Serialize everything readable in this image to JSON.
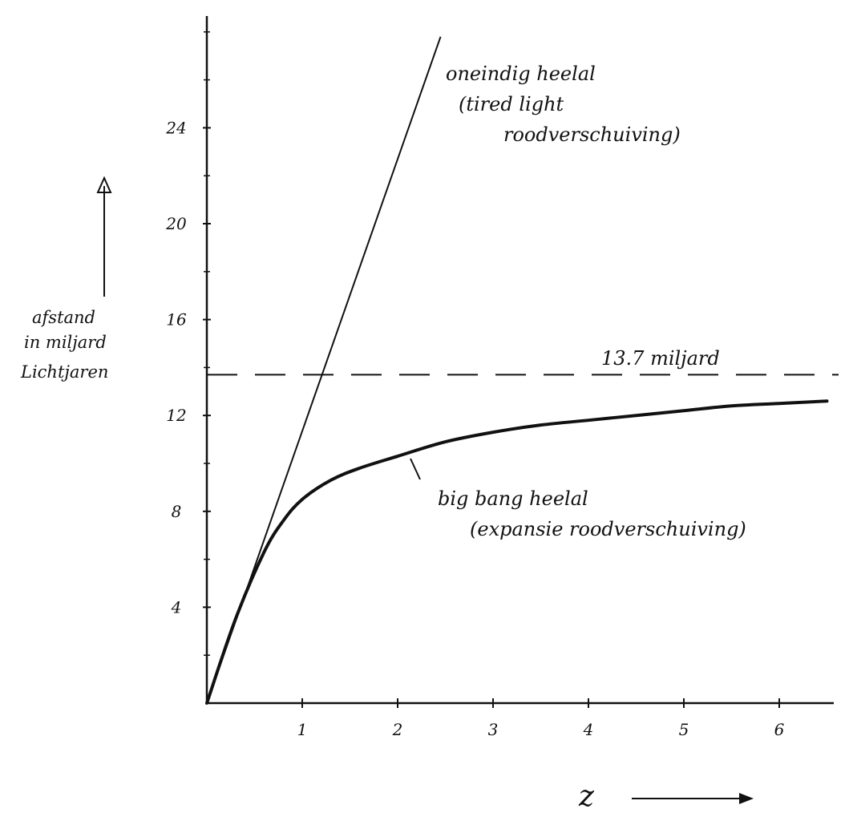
{
  "chart_data": {
    "type": "line",
    "ylabel": [
      "afstand",
      "in miljard",
      "Lichtjaren"
    ],
    "xlabel": "z",
    "xlim": [
      0,
      6.5
    ],
    "ylim": [
      0,
      28
    ],
    "x_ticks": [
      1,
      2,
      3,
      4,
      5,
      6
    ],
    "x_tick_labels": [
      "1",
      "2",
      "3",
      "4",
      "5",
      "6"
    ],
    "y_ticks": [
      4,
      8,
      12,
      16,
      20,
      24
    ],
    "y_tick_labels": [
      "4",
      "8",
      "12",
      "16",
      "20",
      "24"
    ],
    "y_minor_ticks": [
      2,
      6,
      10,
      14,
      18,
      22,
      26,
      28
    ],
    "grid": false,
    "series": [
      {
        "label_lines": [
          "oneindig heelal",
          "(tired light",
          "roodverschuiving)"
        ],
        "style": "solid-thin",
        "x": [
          0,
          2.45
        ],
        "y": [
          0,
          27.8
        ]
      },
      {
        "label_lines": [
          "big bang heelal",
          "(expansie roodverschuiving)"
        ],
        "style": "solid-thick",
        "x": [
          0,
          0.3,
          0.6,
          0.8,
          1.0,
          1.3,
          1.6,
          2.0,
          2.5,
          3.0,
          3.5,
          4.0,
          4.5,
          5.0,
          5.5,
          6.0,
          6.5
        ],
        "y": [
          0,
          3.5,
          6.3,
          7.6,
          8.5,
          9.3,
          9.8,
          10.3,
          10.9,
          11.3,
          11.6,
          11.8,
          12.0,
          12.2,
          12.4,
          12.5,
          12.6
        ]
      }
    ],
    "reference_line": {
      "label": "13.7 miljard",
      "y": 13.7,
      "style": "dashed"
    }
  }
}
